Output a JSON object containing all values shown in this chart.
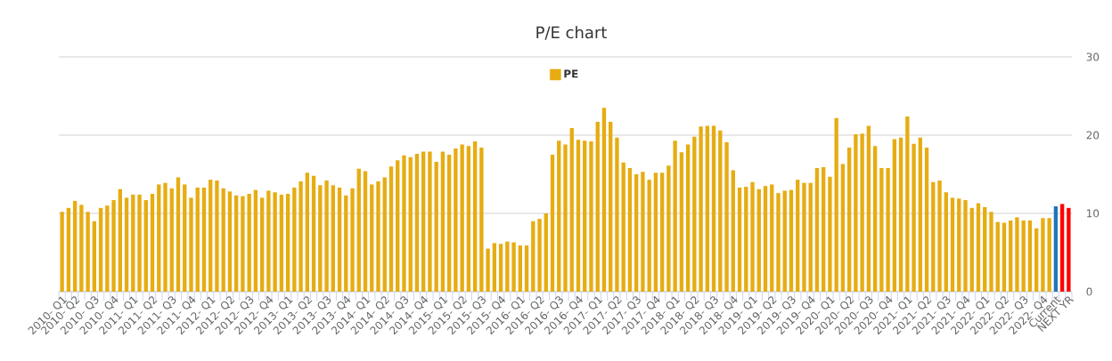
{
  "chart_data": {
    "type": "bar",
    "title": "P/E chart",
    "categories": [
      "2010- Q1",
      null,
      "2010- Q2",
      null,
      null,
      "2010- Q3",
      null,
      null,
      "2010- Q4",
      null,
      null,
      "2011- Q1",
      null,
      null,
      "2011- Q2",
      null,
      null,
      "2011- Q3",
      null,
      null,
      "2011- Q4",
      null,
      null,
      "2012- Q1",
      null,
      null,
      "2012- Q2",
      null,
      null,
      "2012- Q3",
      null,
      null,
      "2012- Q4",
      null,
      null,
      "2013- Q1",
      null,
      null,
      "2013- Q2",
      null,
      null,
      "2013- Q3",
      null,
      null,
      "2013- Q4",
      null,
      null,
      "2014- Q1",
      null,
      null,
      "2014- Q2",
      null,
      null,
      "2014- Q3",
      null,
      null,
      "2014- Q4",
      null,
      null,
      "2015- Q1",
      null,
      null,
      "2015- Q2",
      null,
      null,
      "2015- Q3",
      null,
      null,
      "2015- Q4",
      null,
      null,
      "2016- Q1",
      null,
      null,
      "2016- Q2",
      null,
      null,
      "2016- Q3",
      null,
      null,
      "2016- Q4",
      null,
      null,
      "2017- Q1",
      null,
      null,
      "2017- Q2",
      null,
      null,
      "2017- Q3",
      null,
      null,
      "2017- Q4",
      null,
      null,
      "2018- Q1",
      null,
      null,
      "2018- Q2",
      null,
      null,
      "2018- Q3",
      null,
      null,
      "2018- Q4",
      null,
      null,
      "2019- Q1",
      null,
      null,
      "2019- Q2",
      null,
      null,
      "2019- Q3",
      null,
      null,
      "2019- Q4",
      null,
      null,
      "2020- Q1",
      null,
      null,
      "2020- Q2",
      null,
      null,
      "2020- Q3",
      null,
      null,
      "2020- Q4",
      null,
      null,
      "2021- Q1",
      null,
      null,
      "2021- Q2",
      null,
      null,
      "2021- Q3",
      null,
      null,
      "2021- Q4",
      null,
      null,
      "2022- Q1",
      null,
      null,
      "2022- Q2",
      null,
      null,
      "2022- Q3",
      null,
      null,
      "2022- Q4",
      null,
      "Current",
      null,
      "NEXT YR"
    ],
    "series": [
      {
        "name": "PE",
        "color": "#e6ac12",
        "colors": [
          "#e6ac12",
          "#e6ac12",
          "#e6ac12",
          "#e6ac12",
          "#e6ac12",
          "#e6ac12",
          "#e6ac12",
          "#e6ac12",
          "#e6ac12",
          "#e6ac12",
          "#e6ac12",
          "#e6ac12",
          "#e6ac12",
          "#e6ac12",
          "#e6ac12",
          "#e6ac12",
          "#e6ac12",
          "#e6ac12",
          "#e6ac12",
          "#e6ac12",
          "#e6ac12",
          "#e6ac12",
          "#e6ac12",
          "#e6ac12",
          "#e6ac12",
          "#e6ac12",
          "#e6ac12",
          "#e6ac12",
          "#e6ac12",
          "#e6ac12",
          "#e6ac12",
          "#e6ac12",
          "#e6ac12",
          "#e6ac12",
          "#e6ac12",
          "#e6ac12",
          "#e6ac12",
          "#e6ac12",
          "#e6ac12",
          "#e6ac12",
          "#e6ac12",
          "#e6ac12",
          "#e6ac12",
          "#e6ac12",
          "#e6ac12",
          "#e6ac12",
          "#e6ac12",
          "#e6ac12",
          "#e6ac12",
          "#e6ac12",
          "#e6ac12",
          "#e6ac12",
          "#e6ac12",
          "#e6ac12",
          "#e6ac12",
          "#e6ac12",
          "#e6ac12",
          "#e6ac12",
          "#e6ac12",
          "#e6ac12",
          "#e6ac12",
          "#e6ac12",
          "#e6ac12",
          "#e6ac12",
          "#e6ac12",
          "#e6ac12",
          "#e6ac12",
          "#e6ac12",
          "#e6ac12",
          "#e6ac12",
          "#e6ac12",
          "#e6ac12",
          "#e6ac12",
          "#e6ac12",
          "#e6ac12",
          "#e6ac12",
          "#e6ac12",
          "#e6ac12",
          "#e6ac12",
          "#e6ac12",
          "#e6ac12",
          "#e6ac12",
          "#e6ac12",
          "#e6ac12",
          "#e6ac12",
          "#e6ac12",
          "#e6ac12",
          "#e6ac12",
          "#e6ac12",
          "#e6ac12",
          "#e6ac12",
          "#e6ac12",
          "#e6ac12",
          "#e6ac12",
          "#e6ac12",
          "#e6ac12",
          "#e6ac12",
          "#e6ac12",
          "#e6ac12",
          "#e6ac12",
          "#e6ac12",
          "#e6ac12",
          "#e6ac12",
          "#e6ac12",
          "#e6ac12",
          "#e6ac12",
          "#e6ac12",
          "#e6ac12",
          "#e6ac12",
          "#e6ac12",
          "#e6ac12",
          "#e6ac12",
          "#e6ac12",
          "#e6ac12",
          "#e6ac12",
          "#e6ac12",
          "#e6ac12",
          "#e6ac12",
          "#e6ac12",
          "#e6ac12",
          "#e6ac12",
          "#e6ac12",
          "#e6ac12",
          "#e6ac12",
          "#e6ac12",
          "#e6ac12",
          "#e6ac12",
          "#e6ac12",
          "#e6ac12",
          "#e6ac12",
          "#e6ac12",
          "#e6ac12",
          "#e6ac12",
          "#e6ac12",
          "#e6ac12",
          "#e6ac12",
          "#e6ac12",
          "#e6ac12",
          "#e6ac12",
          "#e6ac12",
          "#e6ac12",
          "#e6ac12",
          "#e6ac12",
          "#e6ac12",
          "#e6ac12",
          "#e6ac12",
          "#e6ac12",
          "#e6ac12",
          "#e6ac12",
          "#e6ac12",
          "#e6ac12",
          "#e6ac12",
          "#e6ac12",
          "#e6ac12",
          "#2374b5",
          "#ff0000",
          "#ff0000"
        ],
        "values": [
          10.2,
          10.7,
          11.6,
          11.1,
          10.2,
          9.0,
          10.7,
          11.0,
          11.7,
          13.1,
          12.0,
          12.4,
          12.4,
          11.7,
          12.5,
          13.7,
          13.9,
          13.2,
          14.6,
          13.7,
          12.0,
          13.3,
          13.3,
          14.3,
          14.2,
          13.2,
          12.8,
          12.3,
          12.2,
          12.5,
          13.0,
          12.0,
          12.9,
          12.7,
          12.4,
          12.5,
          13.3,
          14.1,
          15.2,
          14.8,
          13.6,
          14.2,
          13.6,
          13.3,
          12.3,
          13.2,
          15.7,
          15.4,
          13.7,
          14.1,
          14.6,
          16.0,
          16.8,
          17.4,
          17.2,
          17.6,
          17.9,
          17.9,
          16.6,
          17.9,
          17.5,
          18.3,
          18.8,
          18.6,
          19.2,
          18.4,
          5.5,
          6.2,
          6.1,
          6.4,
          6.3,
          5.9,
          5.9,
          9.0,
          9.3,
          10.0,
          17.5,
          19.3,
          18.8,
          20.9,
          19.4,
          19.3,
          19.2,
          21.7,
          23.5,
          21.7,
          19.7,
          16.5,
          15.8,
          15.0,
          15.3,
          14.3,
          15.2,
          15.2,
          16.1,
          19.3,
          17.8,
          18.8,
          19.8,
          21.1,
          21.2,
          21.2,
          20.6,
          19.1,
          15.5,
          13.3,
          13.4,
          14.0,
          13.1,
          13.5,
          13.7,
          12.6,
          12.9,
          13.0,
          14.3,
          13.9,
          13.9,
          15.8,
          15.9,
          14.7,
          22.2,
          16.3,
          18.4,
          20.1,
          20.2,
          21.2,
          18.6,
          15.8,
          15.8,
          19.5,
          19.7,
          22.4,
          18.9,
          19.7,
          18.4,
          14.0,
          14.2,
          12.7,
          12.0,
          11.9,
          11.7,
          10.7,
          11.3,
          10.8,
          10.2,
          8.9,
          8.8,
          9.1,
          9.5,
          9.1,
          9.1,
          8.1,
          9.4,
          9.4,
          10.9,
          11.2,
          10.7
        ]
      }
    ],
    "ylim": [
      0,
      30
    ],
    "yticks": [
      0,
      10,
      20,
      30
    ],
    "grid": "y",
    "legend": "top"
  }
}
